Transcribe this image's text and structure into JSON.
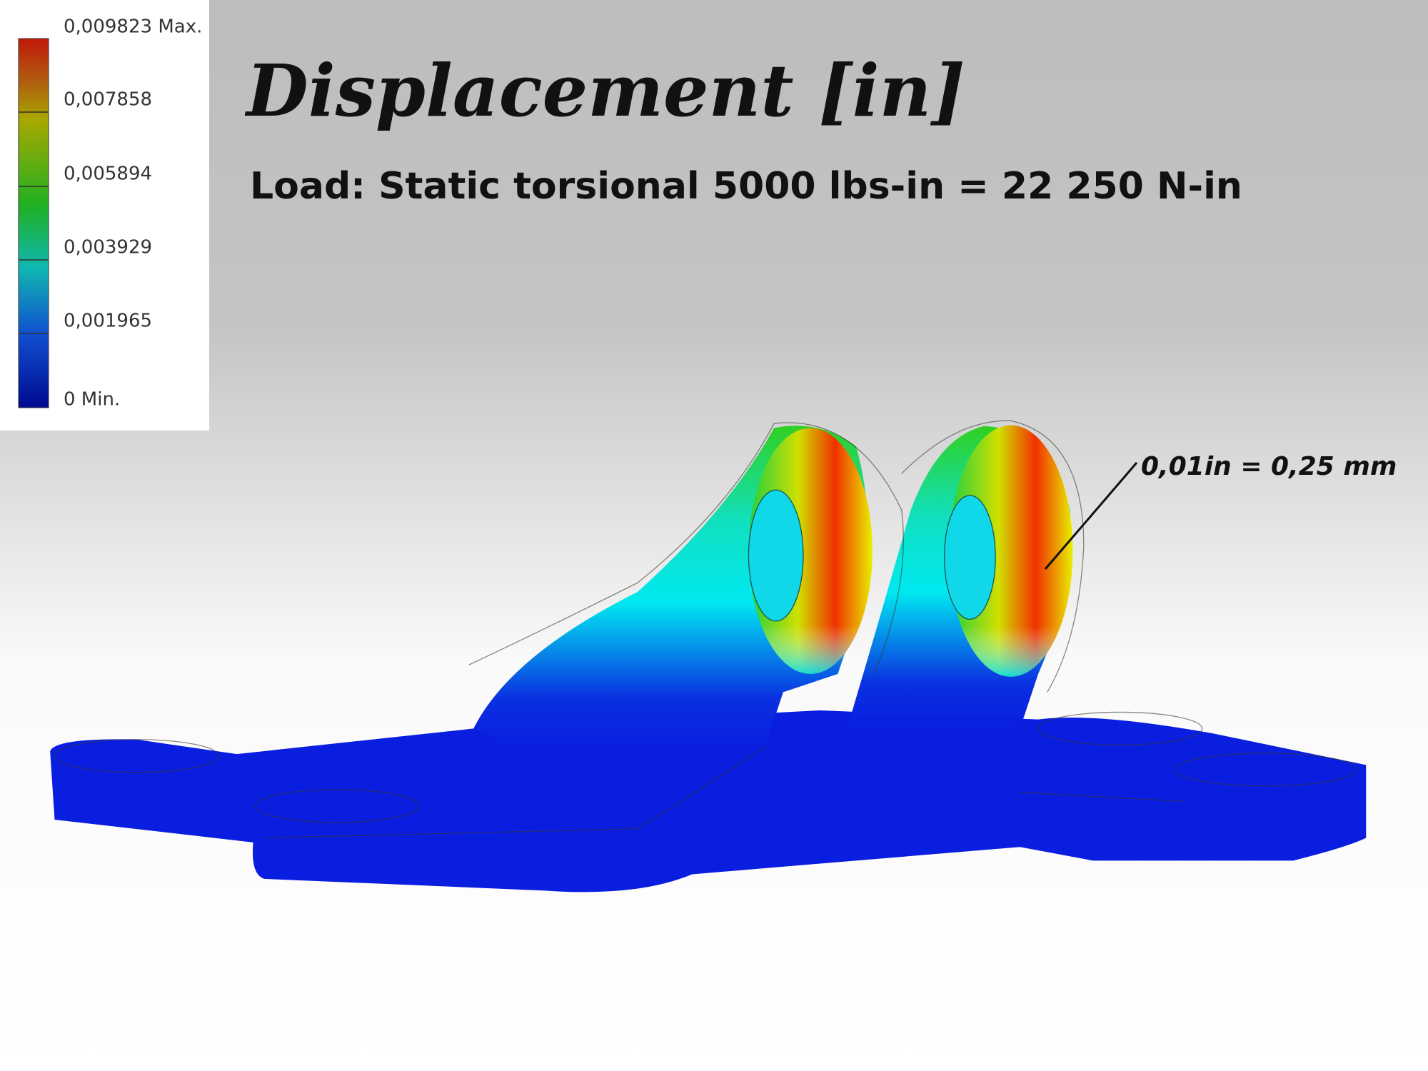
{
  "legend": {
    "labels": [
      "0,009823 Max.",
      "0,007858",
      "0,005894",
      "0,003929",
      "0,001965",
      "0 Min."
    ]
  },
  "header": {
    "title": "Displacement [in]",
    "subtitle": "Load: Static torsional 5000 lbs-in = 22 250 N-in"
  },
  "annotation": "0,01in = 0,25 mm"
}
